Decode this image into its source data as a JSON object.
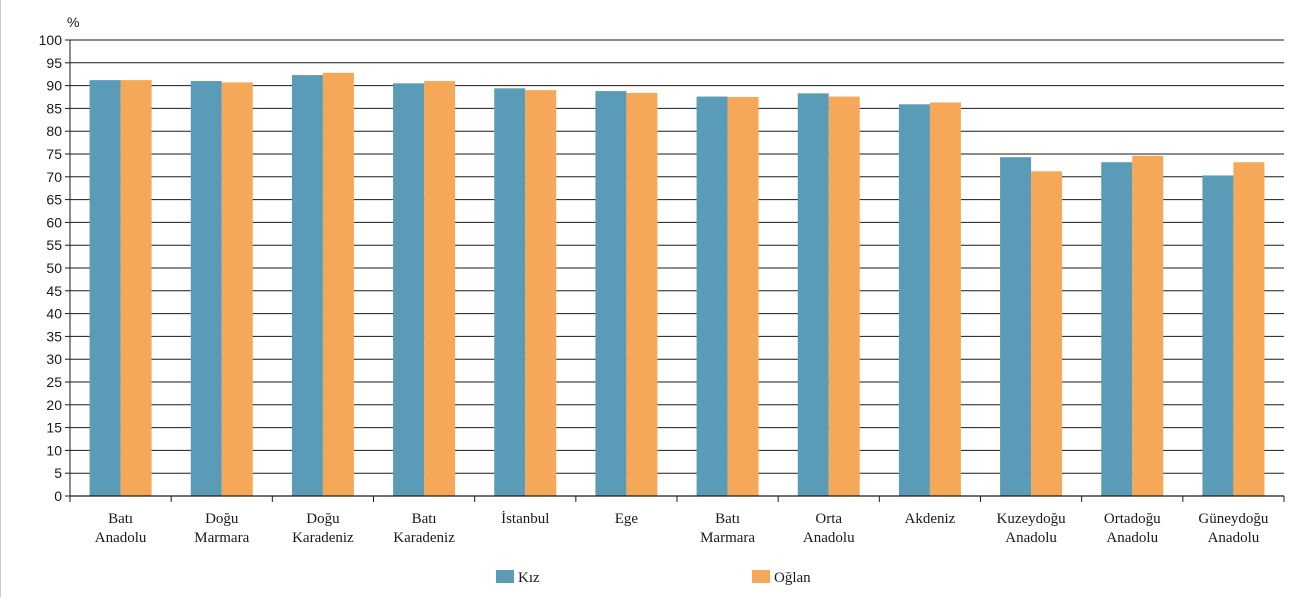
{
  "chart_data": {
    "type": "bar",
    "ylabel": "%",
    "ylim": [
      0,
      100
    ],
    "ytick_step": 5,
    "grid": true,
    "legend_position": "bottom",
    "categories": [
      [
        "Batı",
        "Anadolu"
      ],
      [
        "Doğu",
        "Marmara"
      ],
      [
        "Doğu",
        "Karadeniz"
      ],
      [
        "Batı",
        "Karadeniz"
      ],
      [
        "İstanbul"
      ],
      [
        "Ege"
      ],
      [
        "Batı",
        "Marmara"
      ],
      [
        "Orta",
        "Anadolu"
      ],
      [
        "Akdeniz"
      ],
      [
        "Kuzeydoğu",
        "Anadolu"
      ],
      [
        "Ortadoğu",
        "Anadolu"
      ],
      [
        "Güneydoğu",
        "Anadolu"
      ]
    ],
    "series": [
      {
        "name": "Kız",
        "color": "#5a9bb7",
        "values": [
          91.2,
          91.0,
          92.3,
          90.5,
          89.4,
          88.8,
          87.6,
          88.3,
          85.9,
          74.3,
          73.2,
          70.3
        ]
      },
      {
        "name": "Oğlan",
        "color": "#f5a857",
        "values": [
          91.2,
          90.7,
          92.8,
          91.0,
          89.0,
          88.4,
          87.5,
          87.6,
          86.3,
          71.2,
          74.6,
          73.2
        ]
      }
    ]
  }
}
